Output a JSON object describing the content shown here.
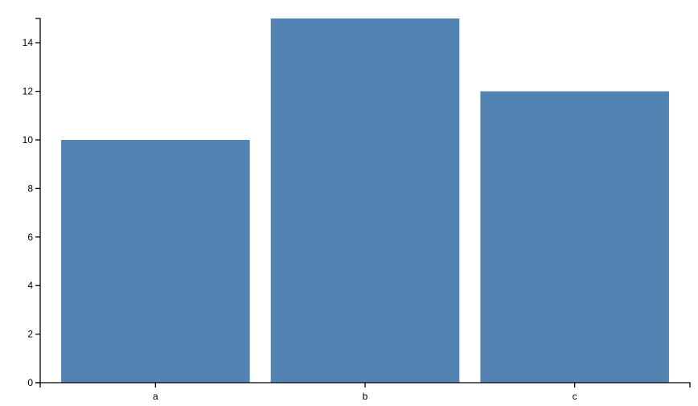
{
  "chart_data": {
    "type": "bar",
    "title": "",
    "xlabel": "",
    "ylabel": "",
    "categories": [
      "a",
      "b",
      "c"
    ],
    "values": [
      10,
      15,
      12
    ],
    "ylim": [
      0,
      15
    ],
    "yticks": [
      0,
      2,
      4,
      6,
      8,
      10,
      12,
      14
    ],
    "grid": false,
    "bar_color": "#5383b3"
  }
}
